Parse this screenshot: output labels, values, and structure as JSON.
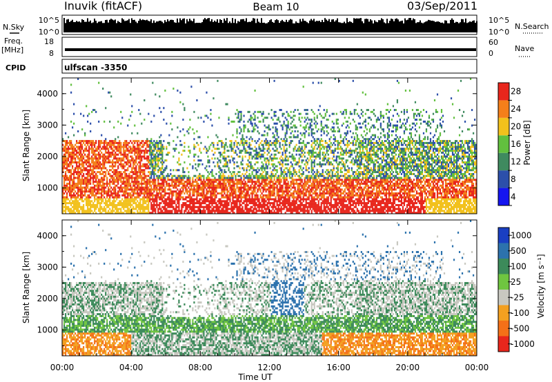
{
  "header": {
    "station": "Inuvik (fitACF)",
    "beam": "Beam 10",
    "date": "03/Sep/2011"
  },
  "top_panels": {
    "nsky_label": "N.Sky",
    "nsky_ticks": [
      "10^5",
      "10^0"
    ],
    "nsearch_label": "N.Search",
    "nsearch_ticks": [
      "10^5",
      "10^0"
    ],
    "freq_label_1": "Freq.",
    "freq_label_2": "[MHz]",
    "freq_ticks": [
      "18",
      "8"
    ],
    "nave_label": "Nave",
    "nave_ticks": [
      "60",
      "0"
    ],
    "cpid_label": "CPID",
    "cpid_value": "ulfscan -3350"
  },
  "chart_data": [
    {
      "type": "heatmap",
      "title": "",
      "xlabel": "",
      "ylabel": "Slant Range [km]",
      "ylim": [
        180,
        4500
      ],
      "yticks": [
        "1000",
        "2000",
        "3000",
        "4000"
      ],
      "colorbar_label": "Power [dB]",
      "colorbar_ticks": [
        "4",
        "8",
        "12",
        "16",
        "20",
        "24",
        "28"
      ],
      "colors": [
        "#1515f0",
        "#2c4faa",
        "#3f8a5f",
        "#62c03e",
        "#f2c11c",
        "#f47f1a",
        "#e8261c"
      ]
    },
    {
      "type": "heatmap",
      "title": "",
      "xlabel": "Time UT",
      "ylabel": "Slant Range [km]",
      "ylim": [
        180,
        4500
      ],
      "yticks": [
        "1000",
        "2000",
        "3000",
        "4000"
      ],
      "xticks": [
        "00:00",
        "04:00",
        "08:00",
        "12:00",
        "16:00",
        "20:00",
        "00:00"
      ],
      "colorbar_label": "Velocity [m s⁻¹]",
      "colorbar_ticks": [
        "1000",
        "500",
        "100",
        "25",
        "-25",
        "-100",
        "-500",
        "-1000"
      ],
      "colors": [
        "#1a3fc2",
        "#2c72ad",
        "#3c8a5a",
        "#6fc540",
        "#c8c8c0",
        "#f3a020",
        "#f47018",
        "#e8261c"
      ]
    }
  ]
}
